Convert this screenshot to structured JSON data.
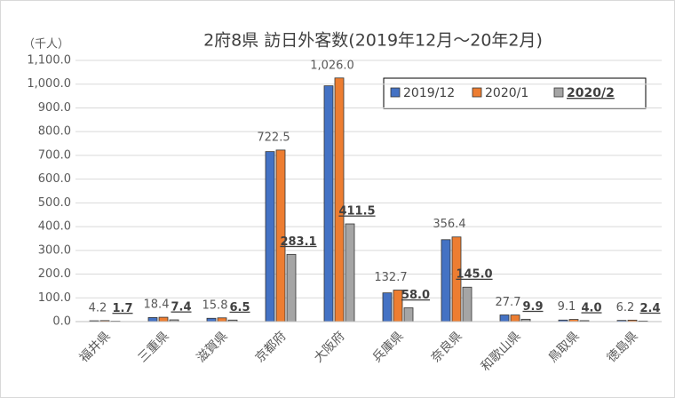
{
  "chart_data": {
    "type": "bar",
    "title": "2府8県 訪日外客数(2019年12月～20年2月)",
    "y_axis_label": "（千人）",
    "categories": [
      "福井県",
      "三重県",
      "滋賀県",
      "京都府",
      "大阪府",
      "兵庫県",
      "奈良県",
      "和歌山県",
      "鳥取県",
      "徳島県"
    ],
    "series": [
      {
        "name": "2019/12",
        "color": "#4472c4",
        "values": [
          3.5,
          17,
          14,
          716,
          993,
          121,
          345,
          28,
          6.5,
          5
        ]
      },
      {
        "name": "2020/1",
        "color": "#ed7d31",
        "values": [
          4.2,
          18.4,
          15.8,
          722.5,
          1026.0,
          132.7,
          356.4,
          27.7,
          9.1,
          6.2
        ],
        "value_labels": [
          "4.2",
          "18.4",
          "15.8",
          "722.5",
          "1,026.0",
          "132.7",
          "356.4",
          "27.7",
          "9.1",
          "6.2"
        ]
      },
      {
        "name": "2020/2",
        "color": "#a5a5a5",
        "values": [
          1.7,
          7.4,
          6.5,
          283.1,
          411.5,
          58.0,
          145.0,
          9.9,
          4.0,
          2.4
        ],
        "value_labels": [
          "1.7",
          "7.4",
          "6.5",
          "283.1",
          "411.5",
          "58.0",
          "145.0",
          "9.9",
          "4.0",
          "2.4"
        ]
      }
    ],
    "ylim": [
      0,
      1100
    ],
    "yticks": [
      {
        "value": 0,
        "label": "0.0"
      },
      {
        "value": 100,
        "label": "100.0"
      },
      {
        "value": 200,
        "label": "200.0"
      },
      {
        "value": 300,
        "label": "300.0"
      },
      {
        "value": 400,
        "label": "400.0"
      },
      {
        "value": 500,
        "label": "500.0"
      },
      {
        "value": 600,
        "label": "600.0"
      },
      {
        "value": 700,
        "label": "700.0"
      },
      {
        "value": 800,
        "label": "800.0"
      },
      {
        "value": 900,
        "label": "900.0"
      },
      {
        "value": 1000,
        "label": "1,000.0"
      },
      {
        "value": 1100,
        "label": "1,100.0"
      }
    ],
    "legend_position": "top-right"
  }
}
